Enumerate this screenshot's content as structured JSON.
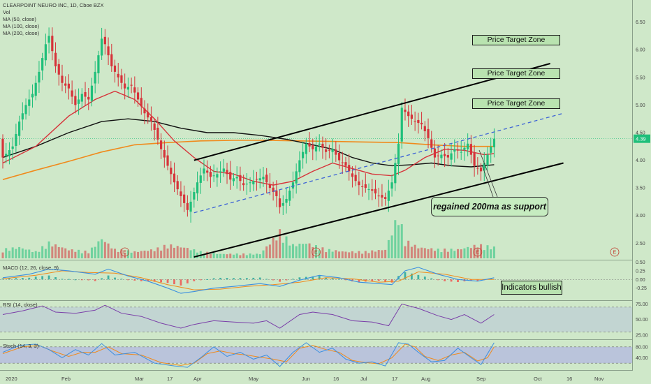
{
  "legend": {
    "symbol": "CLEARPOINT NEURO INC, 1D, Cboe BZX",
    "vol": "Vol",
    "ma50": "MA (50, close)",
    "ma100": "MA (100, close)",
    "ma200": "MA (200, close)"
  },
  "annotations": {
    "zone1": "Price Target Zone",
    "zone2": "Price Target Zone",
    "zone3": "Price Target Zone",
    "support": "regained 200ma as support",
    "indicators": "Indicators bullish"
  },
  "panes": {
    "macd": "MACD (12, 26, close, 9)",
    "rsi": "RSI (14, close)",
    "stoch": "Stoch (14, 3, 3)"
  },
  "price_label": "4.39",
  "earnings_marker": "E",
  "colors": {
    "background": "#cfe8c9",
    "up": "#1fbf7a",
    "down": "#d6333a",
    "ma50": "#d6333a",
    "ma100": "#111111",
    "ma200": "#f08a1c",
    "channel": "#000000",
    "midline": "#3d63d6",
    "macd": "#3b8fe0",
    "signal": "#f08a1c",
    "rsi": "#7a3ea8",
    "stoch_k": "#3b8fe0",
    "stoch_d": "#f08a1c",
    "price_tag": "#1fbf7a"
  },
  "chart_data": {
    "type": "candlestick",
    "y_axis": {
      "ticks": [
        "6.50",
        "6.00",
        "5.50",
        "5.00",
        "4.50",
        "4.00",
        "3.50",
        "3.00",
        "2.50"
      ],
      "range": [
        2.2,
        6.9
      ],
      "current_price": 4.39
    },
    "x_axis": {
      "ticks": [
        "2020",
        "Feb",
        "Mar",
        "17",
        "Apr",
        "May",
        "Jun",
        "16",
        "Jul",
        "17",
        "Aug",
        "Sep",
        "Oct",
        "16",
        "Nov"
      ]
    },
    "macd_axis": {
      "ticks": [
        "0.50",
        "0.25",
        "0.00",
        "-0.25"
      ],
      "range": [
        -0.6,
        0.55
      ]
    },
    "rsi_axis": {
      "ticks": [
        "75.00",
        "50.00",
        "25.00"
      ],
      "range": [
        18,
        80
      ]
    },
    "stoch_axis": {
      "ticks": [
        "80.00",
        "40.00"
      ],
      "range": [
        -5,
        105
      ]
    },
    "close_path": [
      [
        0,
        4.05
      ],
      [
        3,
        4.25
      ],
      [
        5,
        4.7
      ],
      [
        7,
        5.0
      ],
      [
        9,
        5.2
      ],
      [
        11,
        5.6
      ],
      [
        13,
        6.1
      ],
      [
        14,
        6.25
      ],
      [
        16,
        5.7
      ],
      [
        18,
        5.4
      ],
      [
        20,
        5.3
      ],
      [
        22,
        5.0
      ],
      [
        24,
        5.2
      ],
      [
        26,
        5.1
      ],
      [
        28,
        5.6
      ],
      [
        30,
        6.2
      ],
      [
        31,
        6.1
      ],
      [
        33,
        5.7
      ],
      [
        35,
        5.5
      ],
      [
        37,
        5.3
      ],
      [
        39,
        5.35
      ],
      [
        41,
        5.1
      ],
      [
        43,
        4.85
      ],
      [
        45,
        4.7
      ],
      [
        46,
        4.55
      ],
      [
        48,
        4.2
      ],
      [
        50,
        3.9
      ],
      [
        52,
        3.6
      ],
      [
        54,
        3.35
      ],
      [
        56,
        3.1
      ],
      [
        57,
        3.25
      ],
      [
        59,
        3.6
      ],
      [
        61,
        3.85
      ],
      [
        63,
        3.7
      ],
      [
        65,
        3.75
      ],
      [
        67,
        3.85
      ],
      [
        69,
        3.65
      ],
      [
        71,
        3.7
      ],
      [
        73,
        3.55
      ],
      [
        75,
        3.6
      ],
      [
        77,
        3.65
      ],
      [
        79,
        3.7
      ],
      [
        81,
        3.5
      ],
      [
        83,
        3.35
      ],
      [
        84,
        3.15
      ],
      [
        86,
        3.3
      ],
      [
        88,
        3.6
      ],
      [
        90,
        4.0
      ],
      [
        92,
        4.3
      ],
      [
        94,
        4.2
      ],
      [
        96,
        4.3
      ],
      [
        98,
        4.15
      ],
      [
        100,
        4.2
      ],
      [
        102,
        4.0
      ],
      [
        104,
        3.9
      ],
      [
        106,
        3.7
      ],
      [
        108,
        3.55
      ],
      [
        110,
        3.5
      ],
      [
        112,
        3.45
      ],
      [
        114,
        3.35
      ],
      [
        116,
        3.3
      ],
      [
        118,
        3.6
      ],
      [
        120,
        4.3
      ],
      [
        121,
        4.95
      ],
      [
        123,
        4.8
      ],
      [
        125,
        4.7
      ],
      [
        127,
        4.65
      ],
      [
        129,
        4.4
      ],
      [
        131,
        4.05
      ],
      [
        133,
        4.1
      ],
      [
        135,
        4.05
      ],
      [
        137,
        4.2
      ],
      [
        139,
        4.15
      ],
      [
        141,
        4.3
      ],
      [
        143,
        3.9
      ],
      [
        145,
        3.8
      ],
      [
        147,
        4.1
      ],
      [
        149,
        4.39
      ]
    ],
    "volume_path": [
      [
        0,
        0.2
      ],
      [
        5,
        0.25
      ],
      [
        10,
        0.15
      ],
      [
        14,
        0.35
      ],
      [
        20,
        0.2
      ],
      [
        26,
        0.15
      ],
      [
        30,
        0.45
      ],
      [
        34,
        0.2
      ],
      [
        40,
        0.15
      ],
      [
        46,
        0.2
      ],
      [
        50,
        0.3
      ],
      [
        55,
        0.25
      ],
      [
        60,
        0.15
      ],
      [
        66,
        0.1
      ],
      [
        72,
        0.1
      ],
      [
        78,
        0.1
      ],
      [
        84,
        0.6
      ],
      [
        88,
        0.3
      ],
      [
        92,
        0.35
      ],
      [
        98,
        0.2
      ],
      [
        104,
        0.15
      ],
      [
        110,
        0.15
      ],
      [
        116,
        0.2
      ],
      [
        120,
        1.0
      ],
      [
        122,
        0.4
      ],
      [
        126,
        0.25
      ],
      [
        132,
        0.2
      ],
      [
        138,
        0.2
      ],
      [
        144,
        0.3
      ],
      [
        149,
        0.25
      ]
    ],
    "ma50_path": [
      [
        0,
        3.95
      ],
      [
        10,
        4.25
      ],
      [
        20,
        4.8
      ],
      [
        28,
        5.1
      ],
      [
        34,
        5.25
      ],
      [
        40,
        5.1
      ],
      [
        46,
        4.75
      ],
      [
        52,
        4.35
      ],
      [
        58,
        4.05
      ],
      [
        64,
        3.8
      ],
      [
        70,
        3.75
      ],
      [
        76,
        3.62
      ],
      [
        82,
        3.55
      ],
      [
        88,
        3.62
      ],
      [
        94,
        3.8
      ],
      [
        100,
        3.95
      ],
      [
        106,
        3.85
      ],
      [
        112,
        3.75
      ],
      [
        118,
        3.72
      ],
      [
        122,
        3.82
      ],
      [
        128,
        4.05
      ],
      [
        134,
        4.2
      ],
      [
        140,
        4.18
      ],
      [
        146,
        4.1
      ],
      [
        149,
        4.12
      ]
    ],
    "ma100_path": [
      [
        0,
        4.05
      ],
      [
        10,
        4.25
      ],
      [
        20,
        4.5
      ],
      [
        30,
        4.7
      ],
      [
        38,
        4.75
      ],
      [
        46,
        4.7
      ],
      [
        54,
        4.58
      ],
      [
        62,
        4.5
      ],
      [
        70,
        4.5
      ],
      [
        78,
        4.45
      ],
      [
        86,
        4.38
      ],
      [
        94,
        4.28
      ],
      [
        100,
        4.2
      ],
      [
        106,
        4.05
      ],
      [
        112,
        3.95
      ],
      [
        118,
        3.9
      ],
      [
        124,
        3.92
      ],
      [
        130,
        3.95
      ],
      [
        136,
        3.9
      ],
      [
        142,
        3.88
      ],
      [
        149,
        3.92
      ]
    ],
    "ma200_path": [
      [
        0,
        3.65
      ],
      [
        10,
        3.82
      ],
      [
        20,
        3.98
      ],
      [
        30,
        4.15
      ],
      [
        40,
        4.28
      ],
      [
        50,
        4.32
      ],
      [
        60,
        4.35
      ],
      [
        70,
        4.36
      ],
      [
        80,
        4.36
      ],
      [
        90,
        4.35
      ],
      [
        100,
        4.34
      ],
      [
        110,
        4.33
      ],
      [
        120,
        4.32
      ],
      [
        130,
        4.28
      ],
      [
        140,
        4.25
      ],
      [
        149,
        4.25
      ]
    ],
    "channel_upper": {
      "from": [
        58,
        4.0
      ],
      "to": [
        166,
        5.75
      ]
    },
    "channel_lower": {
      "from": [
        58,
        2.25
      ],
      "to": [
        170,
        3.95
      ]
    },
    "channel_mid": {
      "from": [
        58,
        3.05
      ],
      "to": [
        170,
        4.85
      ]
    },
    "macd_path": [
      [
        0,
        0.05
      ],
      [
        8,
        0.15
      ],
      [
        14,
        0.3
      ],
      [
        20,
        0.25
      ],
      [
        28,
        0.15
      ],
      [
        32,
        0.3
      ],
      [
        38,
        0.1
      ],
      [
        44,
        -0.05
      ],
      [
        50,
        -0.25
      ],
      [
        54,
        -0.4
      ],
      [
        58,
        -0.35
      ],
      [
        64,
        -0.25
      ],
      [
        70,
        -0.2
      ],
      [
        78,
        -0.12
      ],
      [
        84,
        -0.2
      ],
      [
        90,
        -0.02
      ],
      [
        96,
        0.12
      ],
      [
        102,
        0.05
      ],
      [
        108,
        -0.08
      ],
      [
        114,
        -0.12
      ],
      [
        118,
        -0.15
      ],
      [
        122,
        0.25
      ],
      [
        126,
        0.35
      ],
      [
        132,
        0.15
      ],
      [
        138,
        0.0
      ],
      [
        144,
        -0.05
      ],
      [
        149,
        0.05
      ]
    ],
    "signal_path": [
      [
        0,
        0.02
      ],
      [
        10,
        0.12
      ],
      [
        18,
        0.25
      ],
      [
        26,
        0.2
      ],
      [
        34,
        0.18
      ],
      [
        42,
        0.05
      ],
      [
        50,
        -0.15
      ],
      [
        58,
        -0.3
      ],
      [
        66,
        -0.28
      ],
      [
        74,
        -0.2
      ],
      [
        82,
        -0.15
      ],
      [
        90,
        -0.08
      ],
      [
        98,
        0.05
      ],
      [
        106,
        0.02
      ],
      [
        114,
        -0.08
      ],
      [
        120,
        -0.05
      ],
      [
        126,
        0.22
      ],
      [
        134,
        0.15
      ],
      [
        142,
        0.0
      ],
      [
        149,
        0.0
      ]
    ],
    "rsi_path": [
      [
        0,
        58
      ],
      [
        6,
        64
      ],
      [
        12,
        72
      ],
      [
        16,
        62
      ],
      [
        22,
        60
      ],
      [
        28,
        65
      ],
      [
        31,
        73
      ],
      [
        36,
        60
      ],
      [
        42,
        55
      ],
      [
        48,
        44
      ],
      [
        54,
        36
      ],
      [
        58,
        42
      ],
      [
        64,
        48
      ],
      [
        70,
        46
      ],
      [
        76,
        44
      ],
      [
        80,
        48
      ],
      [
        84,
        36
      ],
      [
        90,
        58
      ],
      [
        94,
        62
      ],
      [
        100,
        58
      ],
      [
        106,
        48
      ],
      [
        112,
        46
      ],
      [
        117,
        40
      ],
      [
        121,
        75
      ],
      [
        126,
        68
      ],
      [
        132,
        56
      ],
      [
        136,
        50
      ],
      [
        140,
        58
      ],
      [
        145,
        44
      ],
      [
        149,
        58
      ]
    ],
    "stoch_k_path": [
      [
        0,
        60
      ],
      [
        5,
        85
      ],
      [
        10,
        90
      ],
      [
        14,
        70
      ],
      [
        18,
        40
      ],
      [
        22,
        70
      ],
      [
        26,
        50
      ],
      [
        30,
        92
      ],
      [
        34,
        50
      ],
      [
        40,
        60
      ],
      [
        46,
        20
      ],
      [
        52,
        10
      ],
      [
        56,
        5
      ],
      [
        60,
        40
      ],
      [
        64,
        80
      ],
      [
        68,
        45
      ],
      [
        72,
        60
      ],
      [
        76,
        35
      ],
      [
        80,
        50
      ],
      [
        84,
        8
      ],
      [
        88,
        60
      ],
      [
        92,
        95
      ],
      [
        96,
        60
      ],
      [
        100,
        75
      ],
      [
        104,
        35
      ],
      [
        108,
        20
      ],
      [
        112,
        25
      ],
      [
        116,
        10
      ],
      [
        120,
        95
      ],
      [
        123,
        90
      ],
      [
        126,
        60
      ],
      [
        130,
        25
      ],
      [
        134,
        30
      ],
      [
        138,
        75
      ],
      [
        142,
        40
      ],
      [
        145,
        15
      ],
      [
        149,
        95
      ]
    ],
    "stoch_d_path": [
      [
        0,
        55
      ],
      [
        6,
        80
      ],
      [
        11,
        85
      ],
      [
        15,
        65
      ],
      [
        20,
        45
      ],
      [
        24,
        60
      ],
      [
        28,
        60
      ],
      [
        32,
        80
      ],
      [
        36,
        55
      ],
      [
        42,
        50
      ],
      [
        48,
        22
      ],
      [
        54,
        12
      ],
      [
        58,
        20
      ],
      [
        62,
        55
      ],
      [
        66,
        65
      ],
      [
        70,
        55
      ],
      [
        74,
        50
      ],
      [
        78,
        42
      ],
      [
        82,
        35
      ],
      [
        86,
        25
      ],
      [
        90,
        75
      ],
      [
        94,
        85
      ],
      [
        98,
        70
      ],
      [
        102,
        60
      ],
      [
        106,
        30
      ],
      [
        110,
        22
      ],
      [
        114,
        18
      ],
      [
        118,
        40
      ],
      [
        122,
        90
      ],
      [
        125,
        80
      ],
      [
        128,
        45
      ],
      [
        132,
        30
      ],
      [
        136,
        50
      ],
      [
        140,
        60
      ],
      [
        144,
        28
      ],
      [
        147,
        40
      ],
      [
        149,
        80
      ]
    ]
  }
}
